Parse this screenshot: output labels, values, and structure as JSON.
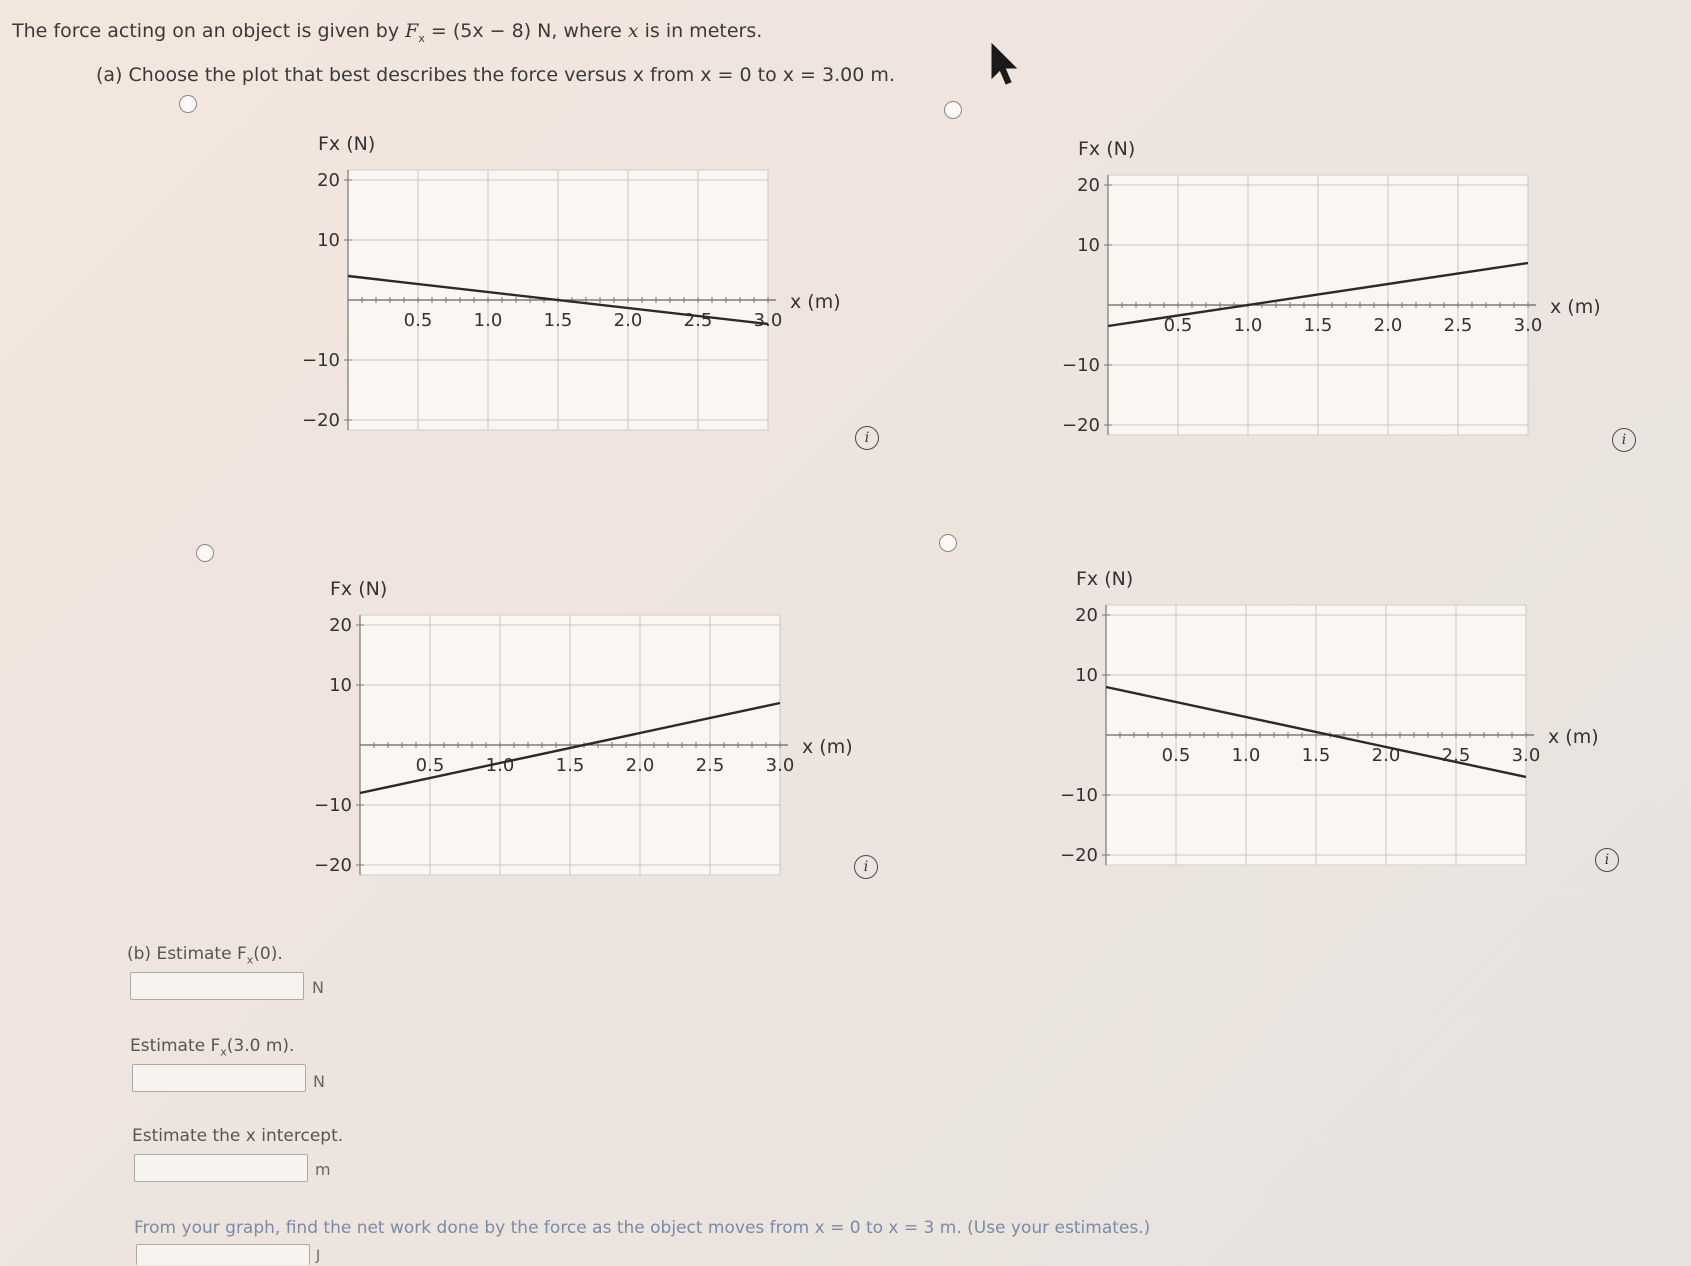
{
  "question": {
    "intro_prefix": "The force acting on an object is given by ",
    "intro_formula": "F",
    "intro_sub": "x",
    "intro_eq": " = (5x − 8) N, where ",
    "intro_var": "x",
    "intro_suffix": " is in meters.",
    "part_a": "(a) Choose the plot that best describes the force versus x from x = 0 to x = 3.00 m."
  },
  "graph_common": {
    "y_label": "Fx (N)",
    "x_label": "x (m)",
    "y_ticks": [
      "20",
      "10",
      "−10",
      "−20"
    ],
    "x_ticks": [
      "0.5",
      "1.0",
      "1.5",
      "2.0",
      "2.5",
      "3.0"
    ]
  },
  "chart_data": [
    {
      "type": "line",
      "id": "option-1",
      "x": [
        0,
        3.0
      ],
      "y": [
        4.0,
        -4.0
      ],
      "xlim": [
        0,
        3.0
      ],
      "ylim": [
        -20,
        20
      ],
      "xlabel": "x (m)",
      "ylabel": "Fx (N)",
      "grid": true
    },
    {
      "type": "line",
      "id": "option-2",
      "x": [
        0,
        3.0
      ],
      "y": [
        -3.5,
        7.0
      ],
      "xlim": [
        0,
        3.0
      ],
      "ylim": [
        -20,
        20
      ],
      "xlabel": "x (m)",
      "ylabel": "Fx (N)",
      "grid": true
    },
    {
      "type": "line",
      "id": "option-3",
      "x": [
        0,
        3.0
      ],
      "y": [
        -8.0,
        7.0
      ],
      "xlim": [
        0,
        3.0
      ],
      "ylim": [
        -20,
        20
      ],
      "xlabel": "x (m)",
      "ylabel": "Fx (N)",
      "grid": true
    },
    {
      "type": "line",
      "id": "option-4",
      "x": [
        0,
        3.0
      ],
      "y": [
        8.0,
        -7.0
      ],
      "xlim": [
        0,
        3.0
      ],
      "ylim": [
        -20,
        20
      ],
      "xlabel": "x (m)",
      "ylabel": "Fx (N)",
      "grid": true
    }
  ],
  "part_b": {
    "label": "(b) Estimate F",
    "label_sub": "x",
    "label_arg": "(0).",
    "unit": "N",
    "value": ""
  },
  "estimate_3": {
    "label": "Estimate F",
    "label_sub": "x",
    "label_arg": "(3.0 m).",
    "unit": "N",
    "value": ""
  },
  "estimate_intercept": {
    "label": "Estimate the x intercept.",
    "unit": "m",
    "value": ""
  },
  "work": {
    "label": "From your graph, find the net work done by the force as the object moves from x = 0 to x = 3 m. (Use your estimates.)",
    "unit": "J"
  },
  "info_icon_glyph": "i"
}
